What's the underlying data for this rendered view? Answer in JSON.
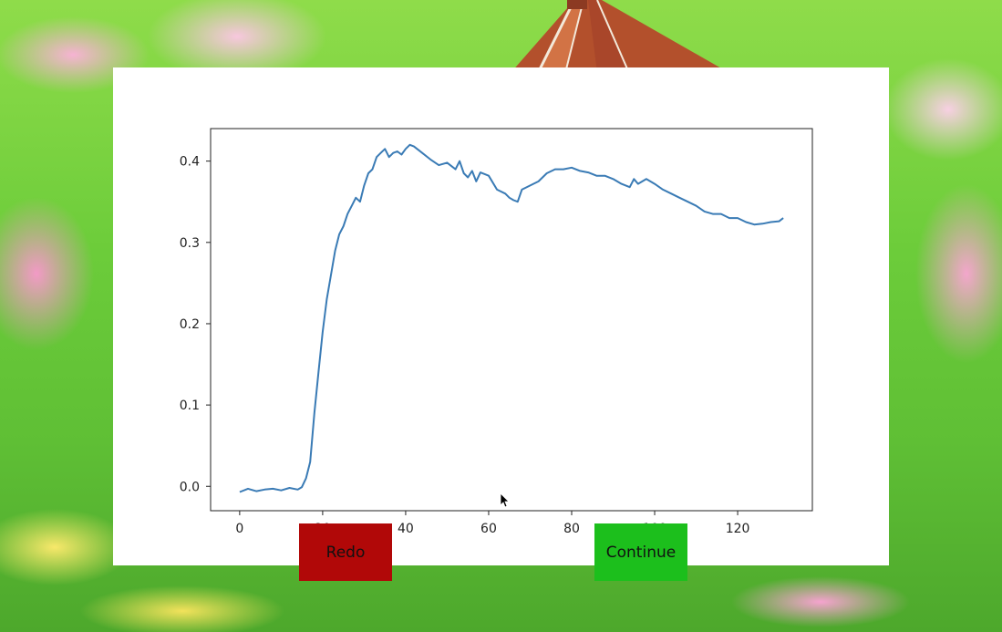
{
  "buttons": {
    "redo_label": "Redo",
    "continue_label": "Continue"
  },
  "colors": {
    "redo": "#b10808",
    "continue": "#1cbf1c",
    "line": "#3a7bb5"
  },
  "chart_data": {
    "type": "line",
    "title": "",
    "xlabel": "",
    "ylabel": "",
    "xlim": [
      -7,
      138
    ],
    "ylim": [
      -0.03,
      0.44
    ],
    "xticks": [
      0,
      20,
      40,
      60,
      80,
      100,
      120
    ],
    "yticks": [
      0.0,
      0.1,
      0.2,
      0.3,
      0.4
    ],
    "ytick_labels": [
      "0.0",
      "0.1",
      "0.2",
      "0.3",
      "0.4"
    ],
    "grid": false,
    "series": [
      {
        "x": [
          0,
          2,
          4,
          6,
          8,
          10,
          12,
          14,
          15,
          16,
          17,
          18,
          19,
          20,
          21,
          22,
          23,
          24,
          25,
          26,
          27,
          28,
          29,
          30,
          31,
          32,
          33,
          34,
          35,
          36,
          37,
          38,
          39,
          40,
          41,
          42,
          44,
          46,
          48,
          50,
          52,
          53,
          54,
          55,
          56,
          57,
          58,
          60,
          62,
          64,
          65,
          66,
          67,
          68,
          70,
          72,
          74,
          76,
          78,
          80,
          82,
          84,
          86,
          88,
          90,
          92,
          94,
          95,
          96,
          98,
          100,
          102,
          104,
          106,
          108,
          110,
          112,
          114,
          116,
          118,
          120,
          122,
          124,
          126,
          128,
          130,
          131
        ],
        "y": [
          -0.007,
          -0.003,
          -0.006,
          -0.004,
          -0.003,
          -0.005,
          -0.002,
          -0.004,
          -0.001,
          0.01,
          0.03,
          0.09,
          0.14,
          0.19,
          0.23,
          0.26,
          0.29,
          0.31,
          0.32,
          0.335,
          0.345,
          0.355,
          0.35,
          0.37,
          0.385,
          0.39,
          0.405,
          0.41,
          0.415,
          0.405,
          0.41,
          0.412,
          0.408,
          0.415,
          0.42,
          0.418,
          0.41,
          0.402,
          0.395,
          0.398,
          0.39,
          0.4,
          0.385,
          0.38,
          0.388,
          0.375,
          0.386,
          0.382,
          0.365,
          0.36,
          0.355,
          0.352,
          0.35,
          0.365,
          0.37,
          0.375,
          0.385,
          0.39,
          0.39,
          0.392,
          0.388,
          0.386,
          0.382,
          0.382,
          0.378,
          0.372,
          0.368,
          0.378,
          0.372,
          0.378,
          0.372,
          0.365,
          0.36,
          0.355,
          0.35,
          0.345,
          0.338,
          0.335,
          0.335,
          0.33,
          0.33,
          0.325,
          0.322,
          0.323,
          0.325,
          0.326,
          0.33
        ]
      }
    ]
  }
}
